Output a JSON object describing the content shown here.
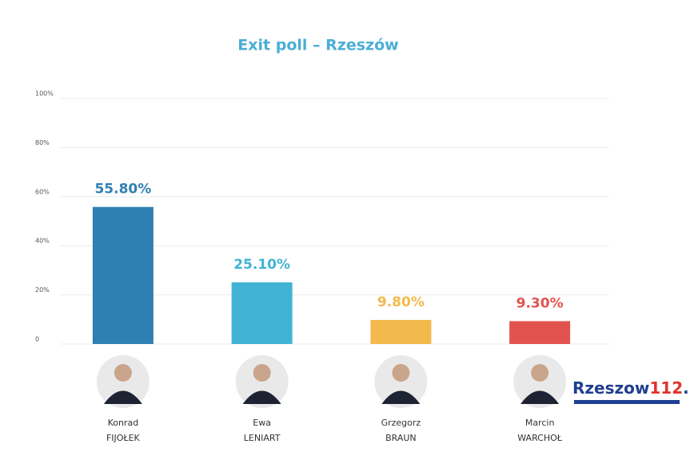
{
  "chart_data": {
    "type": "bar",
    "title": "Exit poll – Rzeszów",
    "categories": [
      [
        "Konrad",
        "FIJOŁEK"
      ],
      [
        "Ewa",
        "LENIART"
      ],
      [
        "Grzegorz",
        "BRAUN"
      ],
      [
        "Marcin",
        "WARCHOŁ"
      ]
    ],
    "values": [
      55.8,
      25.1,
      9.8,
      9.3
    ],
    "value_labels": [
      "55.80%",
      "25.10%",
      "9.80%",
      "9.30%"
    ],
    "colors": [
      "#2f80b2",
      "#41b3d5",
      "#f3b94c",
      "#e2534f"
    ],
    "ylim": [
      0,
      100
    ],
    "yticks": [
      0,
      {
        "value": 20,
        "label": "20%"
      },
      {
        "value": 40,
        "label": "40%"
      },
      {
        "value": 60,
        "label": "60%"
      },
      {
        "value": 80,
        "label": "80%"
      },
      {
        "value": 100,
        "label": "100%"
      }
    ],
    "grid": true
  },
  "logo": [
    "Rzeszow",
    "112",
    ".pl"
  ]
}
